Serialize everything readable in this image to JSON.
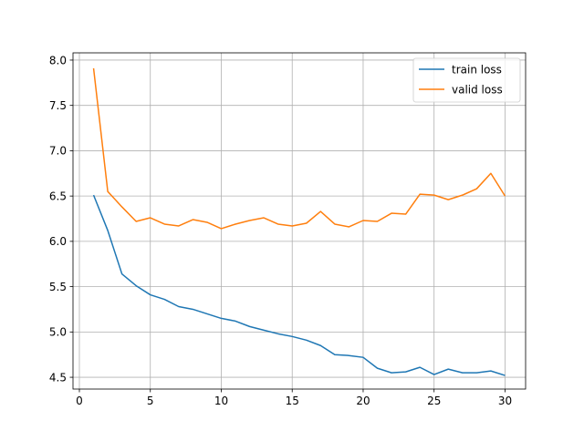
{
  "chart_data": {
    "type": "line",
    "title": "",
    "xlabel": "",
    "ylabel": "",
    "xlim": [
      -0.45,
      31.45
    ],
    "ylim": [
      4.37,
      8.08
    ],
    "xticks": [
      0,
      5,
      10,
      15,
      20,
      25,
      30
    ],
    "yticks": [
      4.5,
      5.0,
      5.5,
      6.0,
      6.5,
      7.0,
      7.5,
      8.0
    ],
    "xtick_labels": [
      "0",
      "5",
      "10",
      "15",
      "20",
      "25",
      "30"
    ],
    "ytick_labels": [
      "4.5",
      "5.0",
      "5.5",
      "6.0",
      "6.5",
      "7.0",
      "7.5",
      "8.0"
    ],
    "grid": true,
    "legend_position": "upper right",
    "x": [
      1,
      2,
      3,
      4,
      5,
      6,
      7,
      8,
      9,
      10,
      11,
      12,
      13,
      14,
      15,
      16,
      17,
      18,
      19,
      20,
      21,
      22,
      23,
      24,
      25,
      26,
      27,
      28,
      29,
      30
    ],
    "series": [
      {
        "name": "train loss",
        "color": "#1f77b4",
        "values": [
          6.51,
          6.12,
          5.64,
          5.51,
          5.41,
          5.36,
          5.28,
          5.25,
          5.2,
          5.15,
          5.12,
          5.06,
          5.02,
          4.98,
          4.95,
          4.91,
          4.85,
          4.75,
          4.74,
          4.72,
          4.6,
          4.55,
          4.56,
          4.61,
          4.53,
          4.59,
          4.55,
          4.55,
          4.57,
          4.52
        ]
      },
      {
        "name": "valid loss",
        "color": "#ff7f0e",
        "values": [
          7.91,
          6.55,
          6.38,
          6.22,
          6.26,
          6.19,
          6.17,
          6.24,
          6.21,
          6.14,
          6.19,
          6.23,
          6.26,
          6.19,
          6.17,
          6.2,
          6.33,
          6.19,
          6.16,
          6.23,
          6.22,
          6.31,
          6.3,
          6.52,
          6.51,
          6.46,
          6.51,
          6.58,
          6.75,
          6.5
        ]
      }
    ]
  }
}
